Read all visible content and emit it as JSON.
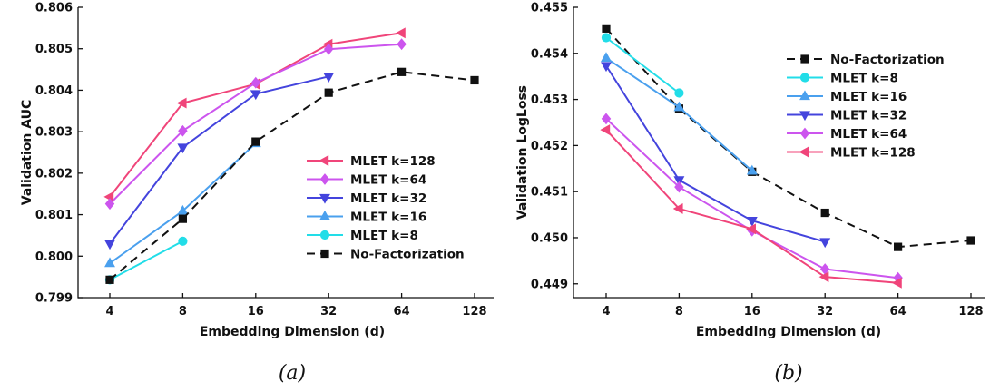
{
  "chart_data": [
    {
      "type": "line",
      "caption": "(a)",
      "xlabel": "Embedding Dimension (d)",
      "ylabel": "Validation AUC",
      "x_scale": "log2",
      "x": [
        4,
        8,
        16,
        32,
        64,
        128
      ],
      "x_tick_labels": [
        "4",
        "8",
        "16",
        "32",
        "64",
        "128"
      ],
      "ylim": [
        0.799,
        0.806
      ],
      "y_ticks": [
        0.799,
        0.8,
        0.801,
        0.802,
        0.803,
        0.804,
        0.805,
        0.806
      ],
      "y_tick_labels": [
        "0.799",
        "0.800",
        "0.801",
        "0.802",
        "0.803",
        "0.804",
        "0.805",
        "0.806"
      ],
      "grid": false,
      "legend_position": "bottom-right",
      "series": [
        {
          "name": "MLET k=128",
          "color": "#f0457a",
          "marker": "triangle-left",
          "dash": "solid",
          "points": [
            [
              4,
              0.80143
            ],
            [
              8,
              0.80369
            ],
            [
              16,
              0.80415
            ],
            [
              32,
              0.80511
            ],
            [
              64,
              0.80538
            ]
          ]
        },
        {
          "name": "MLET k=64",
          "color": "#cc55ee",
          "marker": "diamond",
          "dash": "solid",
          "points": [
            [
              4,
              0.80126
            ],
            [
              8,
              0.80302
            ],
            [
              16,
              0.80418
            ],
            [
              32,
              0.80499
            ],
            [
              64,
              0.80511
            ]
          ]
        },
        {
          "name": "MLET k=32",
          "color": "#4444dd",
          "marker": "triangle-down",
          "dash": "solid",
          "points": [
            [
              4,
              0.8003
            ],
            [
              8,
              0.80262
            ],
            [
              16,
              0.80391
            ],
            [
              32,
              0.80433
            ]
          ]
        },
        {
          "name": "MLET k=16",
          "color": "#4aa0ee",
          "marker": "triangle-up",
          "dash": "solid",
          "points": [
            [
              4,
              0.79983
            ],
            [
              8,
              0.80109
            ],
            [
              16,
              0.80272
            ]
          ]
        },
        {
          "name": "MLET k=8",
          "color": "#22dde8",
          "marker": "circle",
          "dash": "solid",
          "points": [
            [
              4,
              0.79943
            ],
            [
              8,
              0.80036
            ]
          ]
        },
        {
          "name": "No-Factorization",
          "color": "#111111",
          "marker": "square",
          "dash": "dashed",
          "points": [
            [
              4,
              0.79943
            ],
            [
              8,
              0.8009
            ],
            [
              16,
              0.80276
            ],
            [
              32,
              0.80394
            ],
            [
              64,
              0.80444
            ],
            [
              128,
              0.80424
            ]
          ]
        }
      ]
    },
    {
      "type": "line",
      "caption": "(b)",
      "xlabel": "Embedding Dimension (d)",
      "ylabel": "Validation LogLoss",
      "x_scale": "log2",
      "x": [
        4,
        8,
        16,
        32,
        64,
        128
      ],
      "x_tick_labels": [
        "4",
        "8",
        "16",
        "32",
        "64",
        "128"
      ],
      "ylim": [
        0.4487,
        0.455
      ],
      "y_ticks": [
        0.449,
        0.45,
        0.451,
        0.452,
        0.453,
        0.454,
        0.455
      ],
      "y_tick_labels": [
        "0.449",
        "0.450",
        "0.451",
        "0.452",
        "0.453",
        "0.454",
        "0.455"
      ],
      "grid": false,
      "legend_position": "top-right",
      "series": [
        {
          "name": "No-Factorization",
          "color": "#111111",
          "marker": "square",
          "dash": "dashed",
          "points": [
            [
              4,
              0.45454
            ],
            [
              8,
              0.4528
            ],
            [
              16,
              0.45143
            ],
            [
              32,
              0.45054
            ],
            [
              64,
              0.4498
            ],
            [
              128,
              0.44994
            ]
          ]
        },
        {
          "name": "MLET k=8",
          "color": "#22dde8",
          "marker": "circle",
          "dash": "solid",
          "points": [
            [
              4,
              0.45434
            ],
            [
              8,
              0.45314
            ]
          ]
        },
        {
          "name": "MLET k=16",
          "color": "#4aa0ee",
          "marker": "triangle-up",
          "dash": "solid",
          "points": [
            [
              4,
              0.4539
            ],
            [
              8,
              0.45283
            ],
            [
              16,
              0.45145
            ]
          ]
        },
        {
          "name": "MLET k=32",
          "color": "#4444dd",
          "marker": "triangle-down",
          "dash": "solid",
          "points": [
            [
              4,
              0.45373
            ],
            [
              8,
              0.45125
            ],
            [
              16,
              0.45037
            ],
            [
              32,
              0.44991
            ]
          ]
        },
        {
          "name": "MLET k=64",
          "color": "#cc55ee",
          "marker": "diamond",
          "dash": "solid",
          "points": [
            [
              4,
              0.45258
            ],
            [
              8,
              0.4511
            ],
            [
              16,
              0.45015
            ],
            [
              32,
              0.44932
            ],
            [
              64,
              0.44913
            ]
          ]
        },
        {
          "name": "MLET k=128",
          "color": "#f0457a",
          "marker": "triangle-left",
          "dash": "solid",
          "points": [
            [
              4,
              0.45234
            ],
            [
              8,
              0.45063
            ],
            [
              16,
              0.45019
            ],
            [
              32,
              0.44915
            ],
            [
              64,
              0.44902
            ]
          ]
        }
      ]
    }
  ]
}
